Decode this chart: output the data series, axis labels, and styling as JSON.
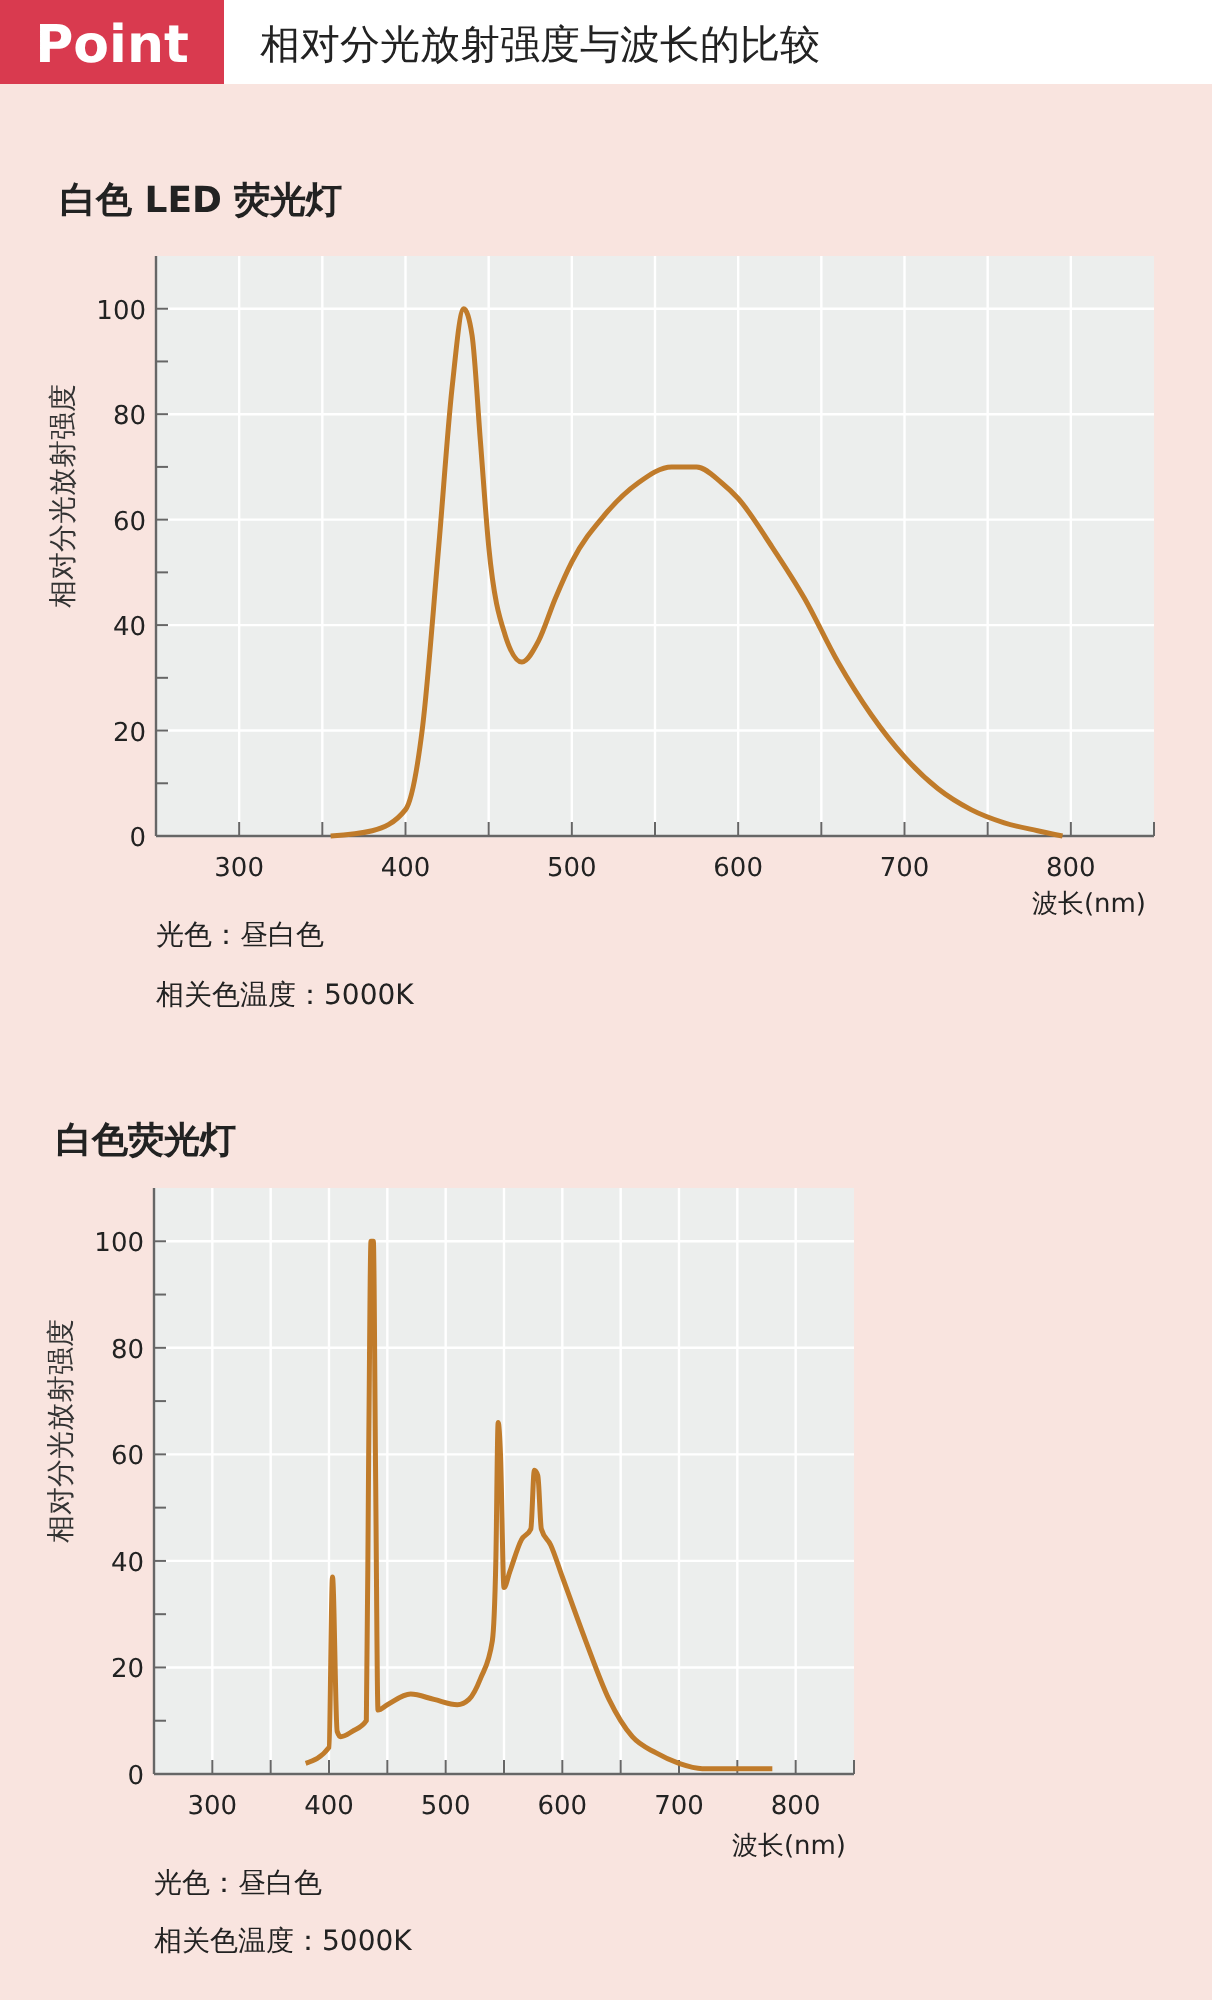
{
  "chart_data": [
    {
      "type": "other",
      "title": "相对分光放射强度与波长的比较",
      "annotations": [
        "Point"
      ]
    },
    {
      "type": "line",
      "title": "白色 LED 荧光灯",
      "xlabel": "波长(nm)",
      "ylabel": "相对分光放射强度",
      "color": "#c07b2a",
      "grid": true,
      "marker": "none",
      "line_style": "solid",
      "xlim": [
        250,
        850
      ],
      "xticks": [
        300,
        {
          "value": 350,
          "label": null
        },
        400,
        {
          "value": 450,
          "label": null
        },
        500,
        {
          "value": 550,
          "label": null
        },
        600,
        {
          "value": 650,
          "label": null
        },
        700,
        {
          "value": 750,
          "label": null
        },
        800
      ],
      "ylim": [
        0,
        110
      ],
      "yticks": [
        0,
        {
          "value": 10,
          "label": null
        },
        20,
        {
          "value": 30,
          "label": null
        },
        40,
        {
          "value": 50,
          "label": null
        },
        60,
        {
          "value": 70,
          "label": null
        },
        80,
        {
          "value": 90,
          "label": null
        },
        100
      ],
      "x": [
        355,
        380,
        400,
        410,
        420,
        428,
        435,
        440,
        445,
        450,
        460,
        470,
        480,
        490,
        500,
        520,
        540,
        560,
        575,
        590,
        600,
        620,
        640,
        660,
        680,
        700,
        720,
        740,
        760,
        780,
        795
      ],
      "values": [
        0,
        1,
        5,
        20,
        55,
        85,
        100,
        95,
        75,
        55,
        38,
        33,
        37,
        45,
        52,
        61,
        67,
        70,
        70,
        67,
        64,
        55,
        45,
        33,
        23,
        15,
        9,
        5,
        2.5,
        1,
        0
      ],
      "annotations": [
        "光色：昼白色",
        "相关色温度：5000K"
      ]
    },
    {
      "type": "line",
      "title": "白色荧光灯",
      "xlabel": "波长(nm)",
      "ylabel": "相对分光放射强度",
      "color": "#c07b2a",
      "grid": true,
      "marker": "none",
      "line_style": "solid",
      "xlim": [
        250,
        850
      ],
      "xticks": [
        300,
        {
          "value": 350,
          "label": null
        },
        400,
        {
          "value": 450,
          "label": null
        },
        500,
        {
          "value": 550,
          "label": null
        },
        600,
        {
          "value": 650,
          "label": null
        },
        700,
        {
          "value": 750,
          "label": null
        },
        800
      ],
      "ylim": [
        0,
        110
      ],
      "yticks": [
        0,
        {
          "value": 10,
          "label": null
        },
        20,
        {
          "value": 30,
          "label": null
        },
        40,
        {
          "value": 50,
          "label": null
        },
        60,
        {
          "value": 70,
          "label": null
        },
        80,
        {
          "value": 90,
          "label": null
        },
        100
      ],
      "x": [
        380,
        400,
        403,
        407,
        410,
        420,
        432,
        434,
        436,
        438,
        440,
        442,
        450,
        470,
        490,
        510,
        520,
        530,
        540,
        543,
        545,
        547,
        550,
        555,
        565,
        573,
        576,
        579,
        582,
        590,
        600,
        620,
        640,
        660,
        680,
        700,
        720,
        780
      ],
      "values": [
        2,
        5,
        37,
        8,
        7,
        8,
        10,
        60,
        100,
        100,
        55,
        12,
        13,
        15,
        14,
        13,
        14,
        18,
        25,
        40,
        66,
        60,
        35,
        38,
        44,
        46,
        57,
        56,
        46,
        43,
        37,
        25,
        14,
        7,
        4,
        2,
        1,
        1
      ],
      "annotations": [
        "光色：昼白色",
        "相关色温度：5000K"
      ]
    }
  ]
}
